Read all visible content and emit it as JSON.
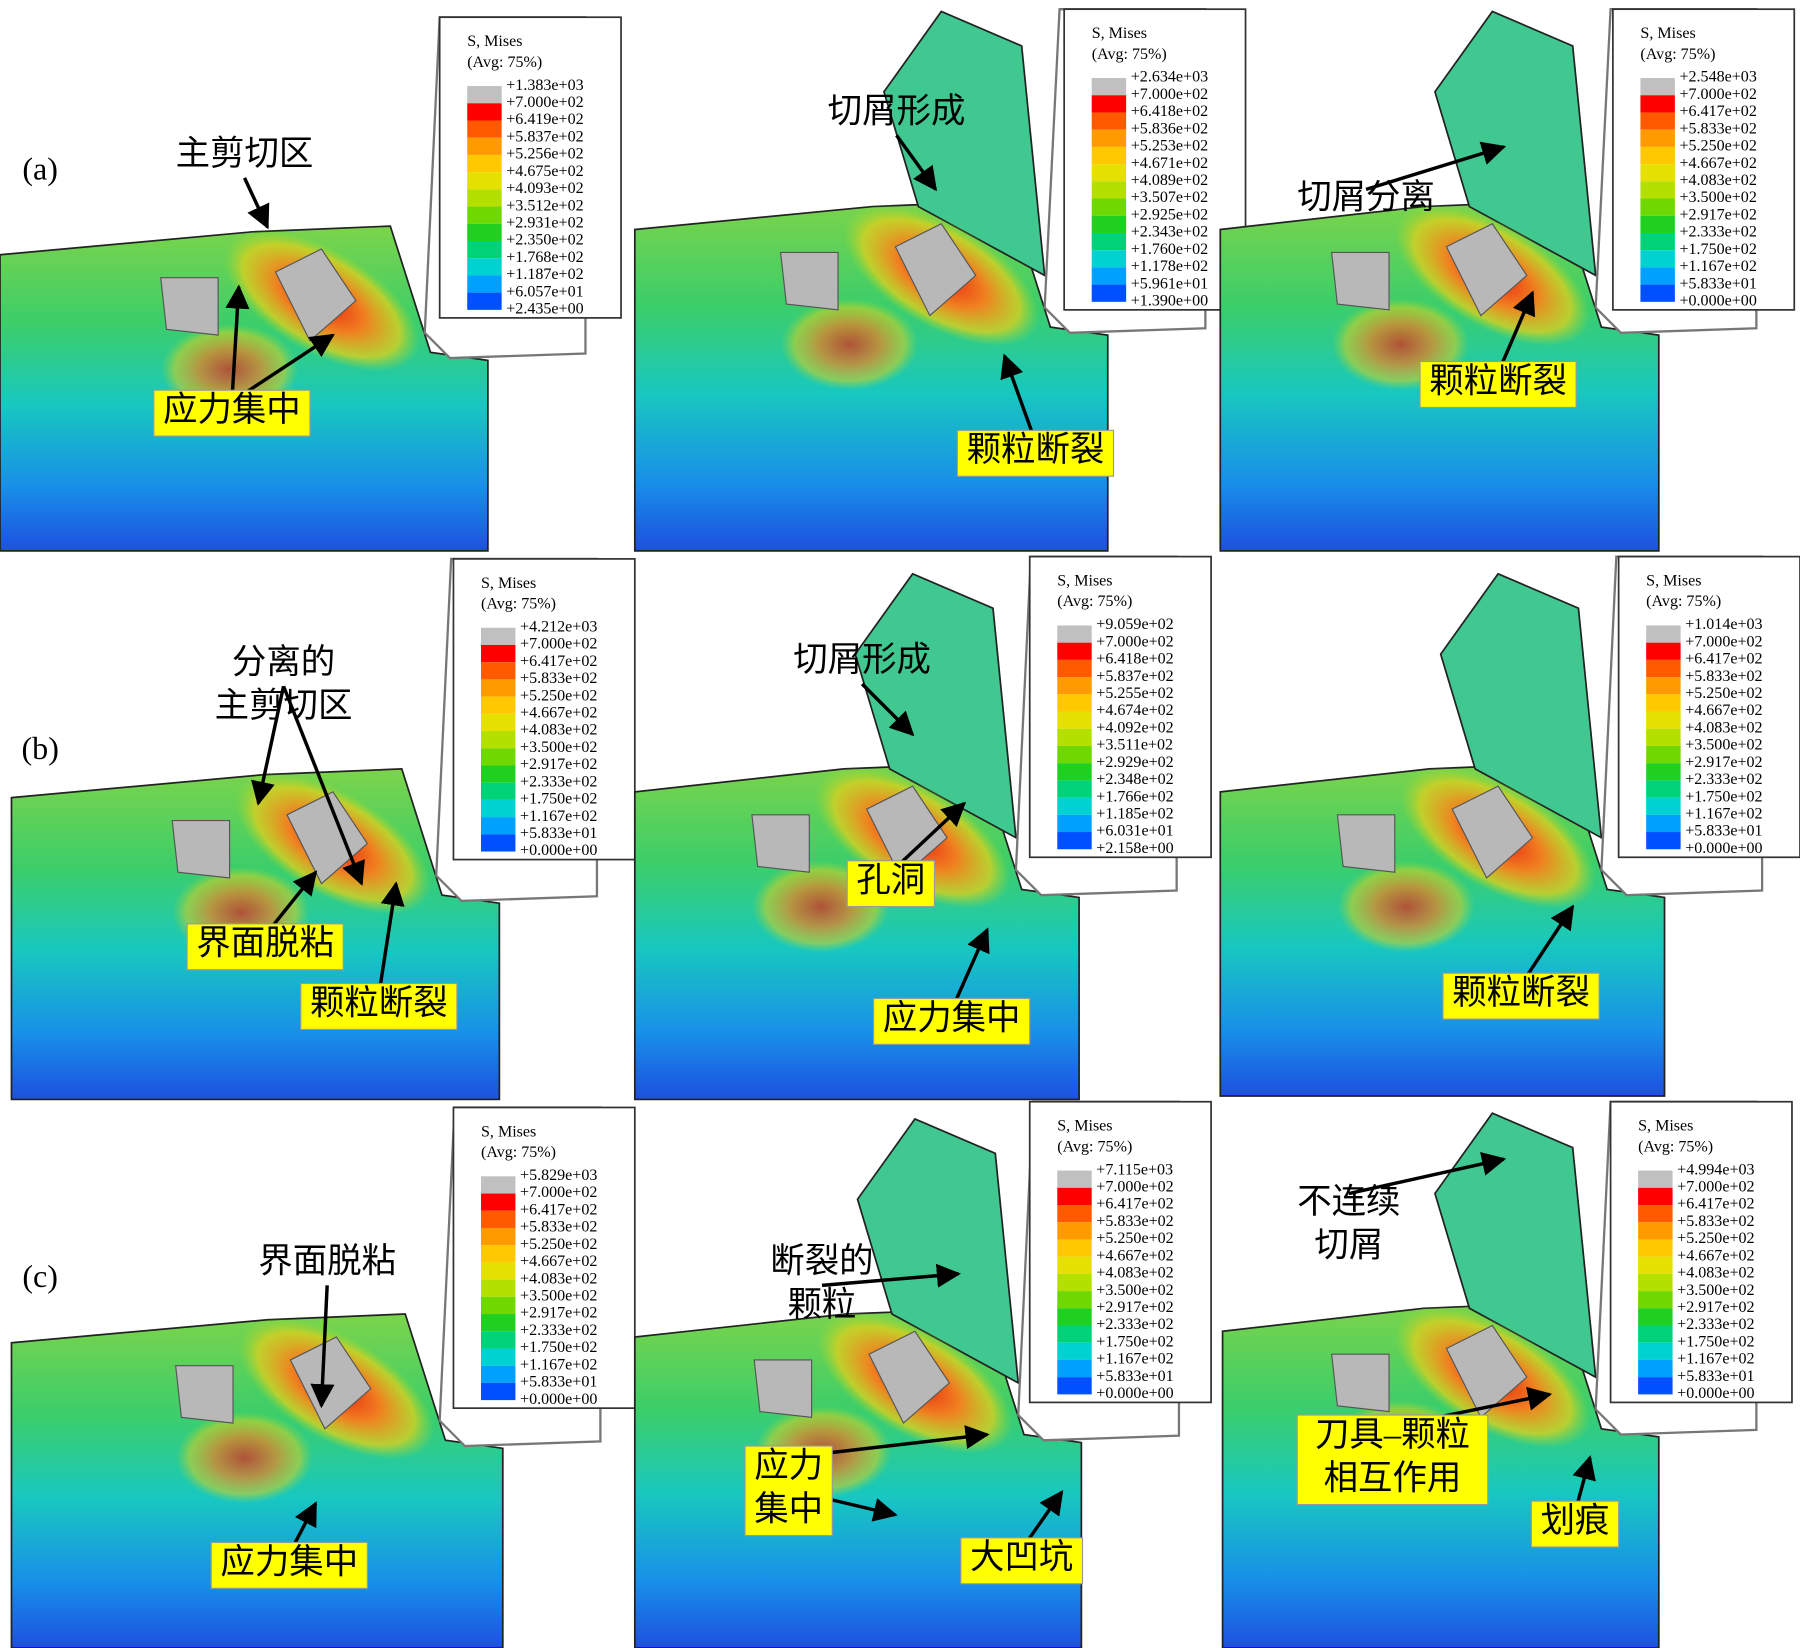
{
  "row_labels": [
    "(a)",
    "(b)",
    "(c)"
  ],
  "panels": [
    {
      "legend": {
        "title": "S, Mises",
        "subtitle": "(Avg: 75%)",
        "labels": [
          "+1.383e+03",
          "+7.000e+02",
          "+6.419e+02",
          "+5.837e+02",
          "+5.256e+02",
          "+4.675e+02",
          "+4.093e+02",
          "+3.512e+02",
          "+2.931e+02",
          "+2.350e+02",
          "+1.768e+02",
          "+1.187e+02",
          "+6.057e+01",
          "+2.435e+00"
        ]
      },
      "annotations": [
        {
          "lines": [
            "主剪切区"
          ],
          "boxed": false
        },
        {
          "lines": [
            "应力集中"
          ],
          "boxed": true
        }
      ]
    },
    {
      "legend": {
        "title": "S, Mises",
        "subtitle": "(Avg: 75%)",
        "labels": [
          "+2.634e+03",
          "+7.000e+02",
          "+6.418e+02",
          "+5.836e+02",
          "+5.253e+02",
          "+4.671e+02",
          "+4.089e+02",
          "+3.507e+02",
          "+2.925e+02",
          "+2.343e+02",
          "+1.760e+02",
          "+1.178e+02",
          "+5.961e+01",
          "+1.390e+00"
        ]
      },
      "annotations": [
        {
          "lines": [
            "切屑形成"
          ],
          "boxed": false
        },
        {
          "lines": [
            "颗粒断裂"
          ],
          "boxed": true
        }
      ]
    },
    {
      "legend": {
        "title": "S, Mises",
        "subtitle": "(Avg: 75%)",
        "labels": [
          "+2.548e+03",
          "+7.000e+02",
          "+6.417e+02",
          "+5.833e+02",
          "+5.250e+02",
          "+4.667e+02",
          "+4.083e+02",
          "+3.500e+02",
          "+2.917e+02",
          "+2.333e+02",
          "+1.750e+02",
          "+1.167e+02",
          "+5.833e+01",
          "+0.000e+00"
        ]
      },
      "annotations": [
        {
          "lines": [
            "切屑分离"
          ],
          "boxed": false
        },
        {
          "lines": [
            "颗粒断裂"
          ],
          "boxed": true
        }
      ]
    },
    {
      "legend": {
        "title": "S, Mises",
        "subtitle": "(Avg: 75%)",
        "labels": [
          "+4.212e+03",
          "+7.000e+02",
          "+6.417e+02",
          "+5.833e+02",
          "+5.250e+02",
          "+4.667e+02",
          "+4.083e+02",
          "+3.500e+02",
          "+2.917e+02",
          "+2.333e+02",
          "+1.750e+02",
          "+1.167e+02",
          "+5.833e+01",
          "+0.000e+00"
        ]
      },
      "annotations": [
        {
          "lines": [
            "分离的",
            "主剪切区"
          ],
          "boxed": false
        },
        {
          "lines": [
            "界面脱粘"
          ],
          "boxed": true
        },
        {
          "lines": [
            "颗粒断裂"
          ],
          "boxed": true
        }
      ]
    },
    {
      "legend": {
        "title": "S, Mises",
        "subtitle": "(Avg: 75%)",
        "labels": [
          "+9.059e+02",
          "+7.000e+02",
          "+6.418e+02",
          "+5.837e+02",
          "+5.255e+02",
          "+4.674e+02",
          "+4.092e+02",
          "+3.511e+02",
          "+2.929e+02",
          "+2.348e+02",
          "+1.766e+02",
          "+1.185e+02",
          "+6.031e+01",
          "+2.158e+00"
        ]
      },
      "annotations": [
        {
          "lines": [
            "切屑形成"
          ],
          "boxed": false
        },
        {
          "lines": [
            "孔洞"
          ],
          "boxed": true
        },
        {
          "lines": [
            "应力集中"
          ],
          "boxed": true
        }
      ]
    },
    {
      "legend": {
        "title": "S, Mises",
        "subtitle": "(Avg: 75%)",
        "labels": [
          "+1.014e+03",
          "+7.000e+02",
          "+6.417e+02",
          "+5.833e+02",
          "+5.250e+02",
          "+4.667e+02",
          "+4.083e+02",
          "+3.500e+02",
          "+2.917e+02",
          "+2.333e+02",
          "+1.750e+02",
          "+1.167e+02",
          "+5.833e+01",
          "+0.000e+00"
        ]
      },
      "annotations": [
        {
          "lines": [
            "颗粒断裂"
          ],
          "boxed": true
        }
      ]
    },
    {
      "legend": {
        "title": "S, Mises",
        "subtitle": "(Avg: 75%)",
        "labels": [
          "+5.829e+03",
          "+7.000e+02",
          "+6.417e+02",
          "+5.833e+02",
          "+5.250e+02",
          "+4.667e+02",
          "+4.083e+02",
          "+3.500e+02",
          "+2.917e+02",
          "+2.333e+02",
          "+1.750e+02",
          "+1.167e+02",
          "+5.833e+01",
          "+0.000e+00"
        ]
      },
      "annotations": [
        {
          "lines": [
            "界面脱粘"
          ],
          "boxed": false
        },
        {
          "lines": [
            "应力集中"
          ],
          "boxed": true
        }
      ]
    },
    {
      "legend": {
        "title": "S, Mises",
        "subtitle": "(Avg: 75%)",
        "labels": [
          "+7.115e+03",
          "+7.000e+02",
          "+6.417e+02",
          "+5.833e+02",
          "+5.250e+02",
          "+4.667e+02",
          "+4.083e+02",
          "+3.500e+02",
          "+2.917e+02",
          "+2.333e+02",
          "+1.750e+02",
          "+1.167e+02",
          "+5.833e+01",
          "+0.000e+00"
        ]
      },
      "annotations": [
        {
          "lines": [
            "断裂的",
            "颗粒"
          ],
          "boxed": false
        },
        {
          "lines": [
            "应力",
            "集中"
          ],
          "boxed": true
        },
        {
          "lines": [
            "大凹坑"
          ],
          "boxed": true
        }
      ]
    },
    {
      "legend": {
        "title": "S, Mises",
        "subtitle": "(Avg: 75%)",
        "labels": [
          "+4.994e+03",
          "+7.000e+02",
          "+6.417e+02",
          "+5.833e+02",
          "+5.250e+02",
          "+4.667e+02",
          "+4.083e+02",
          "+3.500e+02",
          "+2.917e+02",
          "+2.333e+02",
          "+1.750e+02",
          "+1.167e+02",
          "+5.833e+01",
          "+0.000e+00"
        ]
      },
      "annotations": [
        {
          "lines": [
            "不连续",
            "切屑"
          ],
          "boxed": false
        },
        {
          "lines": [
            "刀具–颗粒",
            "相互作用"
          ],
          "boxed": true
        },
        {
          "lines": [
            "划痕"
          ],
          "boxed": true
        }
      ]
    }
  ]
}
